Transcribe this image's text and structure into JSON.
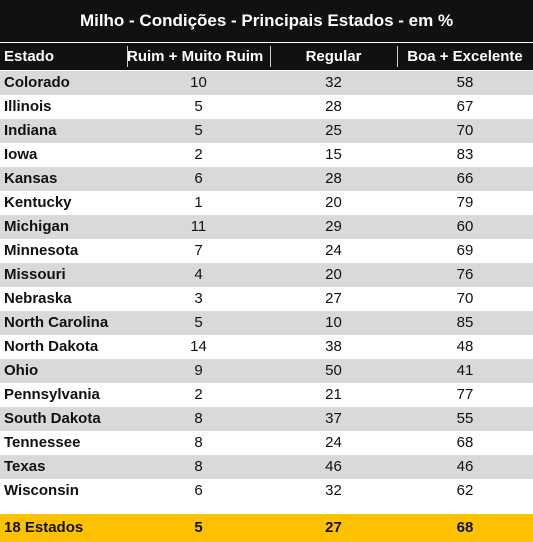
{
  "title": "Milho - Condições - Principais Estados - em %",
  "columns": [
    "Estado",
    "Ruim + Muito Ruim",
    "Regular",
    "Boa + Excelente"
  ],
  "rows": [
    {
      "state": "Colorado",
      "ruim": "10",
      "regular": "32",
      "boa": "58"
    },
    {
      "state": "Illinois",
      "ruim": "5",
      "regular": "28",
      "boa": "67"
    },
    {
      "state": "Indiana",
      "ruim": "5",
      "regular": "25",
      "boa": "70"
    },
    {
      "state": "Iowa",
      "ruim": "2",
      "regular": "15",
      "boa": "83"
    },
    {
      "state": "Kansas",
      "ruim": "6",
      "regular": "28",
      "boa": "66"
    },
    {
      "state": "Kentucky",
      "ruim": "1",
      "regular": "20",
      "boa": "79"
    },
    {
      "state": "Michigan",
      "ruim": "11",
      "regular": "29",
      "boa": "60"
    },
    {
      "state": "Minnesota",
      "ruim": "7",
      "regular": "24",
      "boa": "69"
    },
    {
      "state": "Missouri",
      "ruim": "4",
      "regular": "20",
      "boa": "76"
    },
    {
      "state": "Nebraska",
      "ruim": "3",
      "regular": "27",
      "boa": "70"
    },
    {
      "state": "North Carolina",
      "ruim": "5",
      "regular": "10",
      "boa": "85"
    },
    {
      "state": "North Dakota",
      "ruim": "14",
      "regular": "38",
      "boa": "48"
    },
    {
      "state": "Ohio",
      "ruim": "9",
      "regular": "50",
      "boa": "41"
    },
    {
      "state": "Pennsylvania",
      "ruim": "2",
      "regular": "21",
      "boa": "77"
    },
    {
      "state": "South Dakota",
      "ruim": "8",
      "regular": "37",
      "boa": "55"
    },
    {
      "state": "Tennessee",
      "ruim": "8",
      "regular": "24",
      "boa": "68"
    },
    {
      "state": "Texas",
      "ruim": "8",
      "regular": "46",
      "boa": "46"
    },
    {
      "state": "Wisconsin",
      "ruim": "6",
      "regular": "32",
      "boa": "62"
    }
  ],
  "total": {
    "label": "18 Estados",
    "ruim": "5",
    "regular": "27",
    "boa": "68"
  },
  "colors": {
    "header_bg": "#111111",
    "stripe": "#d9d9d9",
    "total_bg": "#ffc000"
  }
}
